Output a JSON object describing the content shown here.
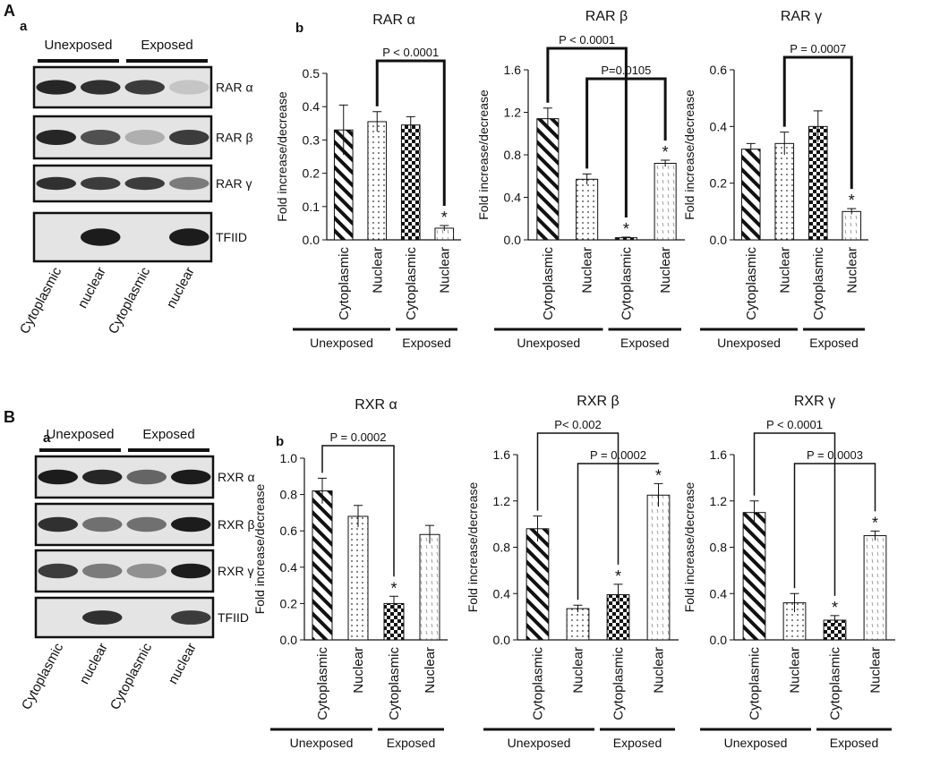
{
  "figure": {
    "panels": [
      {
        "letter": "A",
        "sub_a": "a",
        "sub_b": "b",
        "groups": [
          "Unexposed",
          "Exposed"
        ],
        "blots": [
          "RAR α",
          "RAR β",
          "RAR γ",
          "TFIID"
        ],
        "lanes": [
          "Cytoplasmic",
          "nuclear",
          "Cytoplasmic",
          "nuclear"
        ]
      },
      {
        "letter": "B",
        "sub_a": "a",
        "sub_b": "b",
        "groups": [
          "Unexposed",
          "Exposed"
        ],
        "blots": [
          "RXR α",
          "RXR β",
          "RXR γ",
          "TFIID"
        ],
        "lanes": [
          "Cytoplasmic",
          "nuclear",
          "Cytoplasmic",
          "nuclear"
        ]
      }
    ]
  },
  "chart_data": [
    {
      "type": "bar",
      "title": "RAR α",
      "ylabel": "Fold increase/decrease",
      "categories": [
        "Cytoplasmic",
        "Nuclear",
        "Cytoplasmic",
        "Nuclear"
      ],
      "groups": [
        "Unexposed",
        "Exposed"
      ],
      "patterns": [
        "diagonal",
        "dots",
        "checker",
        "dashes"
      ],
      "values": [
        0.33,
        0.355,
        0.345,
        0.035
      ],
      "errors": [
        0.075,
        0.03,
        0.025,
        0.008
      ],
      "marks": [
        null,
        null,
        null,
        "*"
      ],
      "annotations": [
        {
          "text": "P < 0.0001",
          "from": 1,
          "to": 3
        }
      ],
      "ylim": [
        0,
        0.5
      ],
      "yticks": [
        {
          "value": 0,
          "label": "0.0"
        },
        0.1,
        0.2,
        0.3,
        0.4,
        0.5
      ]
    },
    {
      "type": "bar",
      "title": "RAR β",
      "ylabel": "Fold increase/decrease",
      "categories": [
        "Cytoplasmic",
        "Nuclear",
        "Cytoplasmic",
        "Nuclear"
      ],
      "groups": [
        "Unexposed",
        "Exposed"
      ],
      "patterns": [
        "diagonal",
        "dots",
        "checker",
        "dashes"
      ],
      "values": [
        1.14,
        0.57,
        0.02,
        0.72
      ],
      "errors": [
        0.1,
        0.05,
        0.005,
        0.03
      ],
      "marks": [
        null,
        null,
        "*",
        "*"
      ],
      "annotations": [
        {
          "text": "P < 0.0001",
          "from": 0,
          "to": 2
        },
        {
          "text": "P=0.0105",
          "from": 1,
          "to": 3
        }
      ],
      "ylim": [
        0,
        1.6
      ],
      "yticks": [
        {
          "value": 0,
          "label": "0.0"
        },
        0.4,
        0.8,
        1.2,
        1.6
      ]
    },
    {
      "type": "bar",
      "title": "RAR γ",
      "ylabel": "Fold increase/decrease",
      "categories": [
        "Cytoplasmic",
        "Nuclear",
        "Cytoplasmic",
        "Nuclear"
      ],
      "groups": [
        "Unexposed",
        "Exposed"
      ],
      "patterns": [
        "diagonal",
        "dots",
        "checker",
        "dashes"
      ],
      "values": [
        0.32,
        0.34,
        0.4,
        0.1
      ],
      "errors": [
        0.02,
        0.04,
        0.055,
        0.01
      ],
      "marks": [
        null,
        null,
        null,
        "*"
      ],
      "annotations": [
        {
          "text": "P = 0.0007",
          "from": 1,
          "to": 3
        }
      ],
      "ylim": [
        0,
        0.6
      ],
      "yticks": [
        {
          "value": 0,
          "label": "0.0"
        },
        0.2,
        0.4,
        0.6
      ]
    },
    {
      "type": "bar",
      "title": "RXR α",
      "ylabel": "Fold increase/decrease",
      "categories": [
        "Cytoplasmic",
        "Nuclear",
        "Cytoplasmic",
        "Nuclear"
      ],
      "groups": [
        "Unexposed",
        "Exposed"
      ],
      "patterns": [
        "diagonal",
        "dots",
        "checker",
        "dashes"
      ],
      "values": [
        0.82,
        0.68,
        0.2,
        0.58
      ],
      "errors": [
        0.07,
        0.06,
        0.04,
        0.05
      ],
      "marks": [
        null,
        null,
        "*",
        null
      ],
      "annotations": [
        {
          "text": "P = 0.0002",
          "from": 0,
          "to": 2
        }
      ],
      "ylim": [
        0,
        1.0
      ],
      "yticks": [
        {
          "value": 0,
          "label": "0.0"
        },
        0.2,
        0.4,
        0.6,
        0.8,
        {
          "value": 1.0,
          "label": "1.0"
        }
      ]
    },
    {
      "type": "bar",
      "title": "RXR β",
      "ylabel": "Fold increase/decrease",
      "categories": [
        "Cytoplasmic",
        "Nuclear",
        "Cytoplasmic",
        "Nuclear"
      ],
      "groups": [
        "Unexposed",
        "Exposed"
      ],
      "patterns": [
        "diagonal",
        "dots",
        "checker",
        "dashes"
      ],
      "values": [
        0.96,
        0.27,
        0.39,
        1.25
      ],
      "errors": [
        0.11,
        0.03,
        0.09,
        0.1
      ],
      "marks": [
        null,
        null,
        "*",
        "*"
      ],
      "annotations": [
        {
          "text": "P< 0.002",
          "from": 0,
          "to": 2
        },
        {
          "text": "P = 0.0002",
          "from": 1,
          "to": 3
        }
      ],
      "ylim": [
        0,
        1.6
      ],
      "yticks": [
        {
          "value": 0,
          "label": "0.0"
        },
        0.4,
        0.8,
        1.2,
        1.6
      ]
    },
    {
      "type": "bar",
      "title": "RXR γ",
      "ylabel": "Fold increase/decrease",
      "categories": [
        "Cytoplasmic",
        "Nuclear",
        "Cytoplasmic",
        "Nuclear"
      ],
      "groups": [
        "Unexposed",
        "Exposed"
      ],
      "patterns": [
        "diagonal",
        "dots",
        "checker",
        "dashes"
      ],
      "values": [
        1.1,
        0.32,
        0.17,
        0.9
      ],
      "errors": [
        0.1,
        0.08,
        0.04,
        0.04
      ],
      "marks": [
        null,
        null,
        "*",
        "*"
      ],
      "annotations": [
        {
          "text": "P < 0.0001",
          "from": 0,
          "to": 2
        },
        {
          "text": "P = 0.0003",
          "from": 1,
          "to": 3
        }
      ],
      "ylim": [
        0,
        1.6
      ],
      "yticks": [
        {
          "value": 0,
          "label": "0.0"
        },
        0.4,
        0.8,
        1.2,
        1.6
      ]
    }
  ]
}
